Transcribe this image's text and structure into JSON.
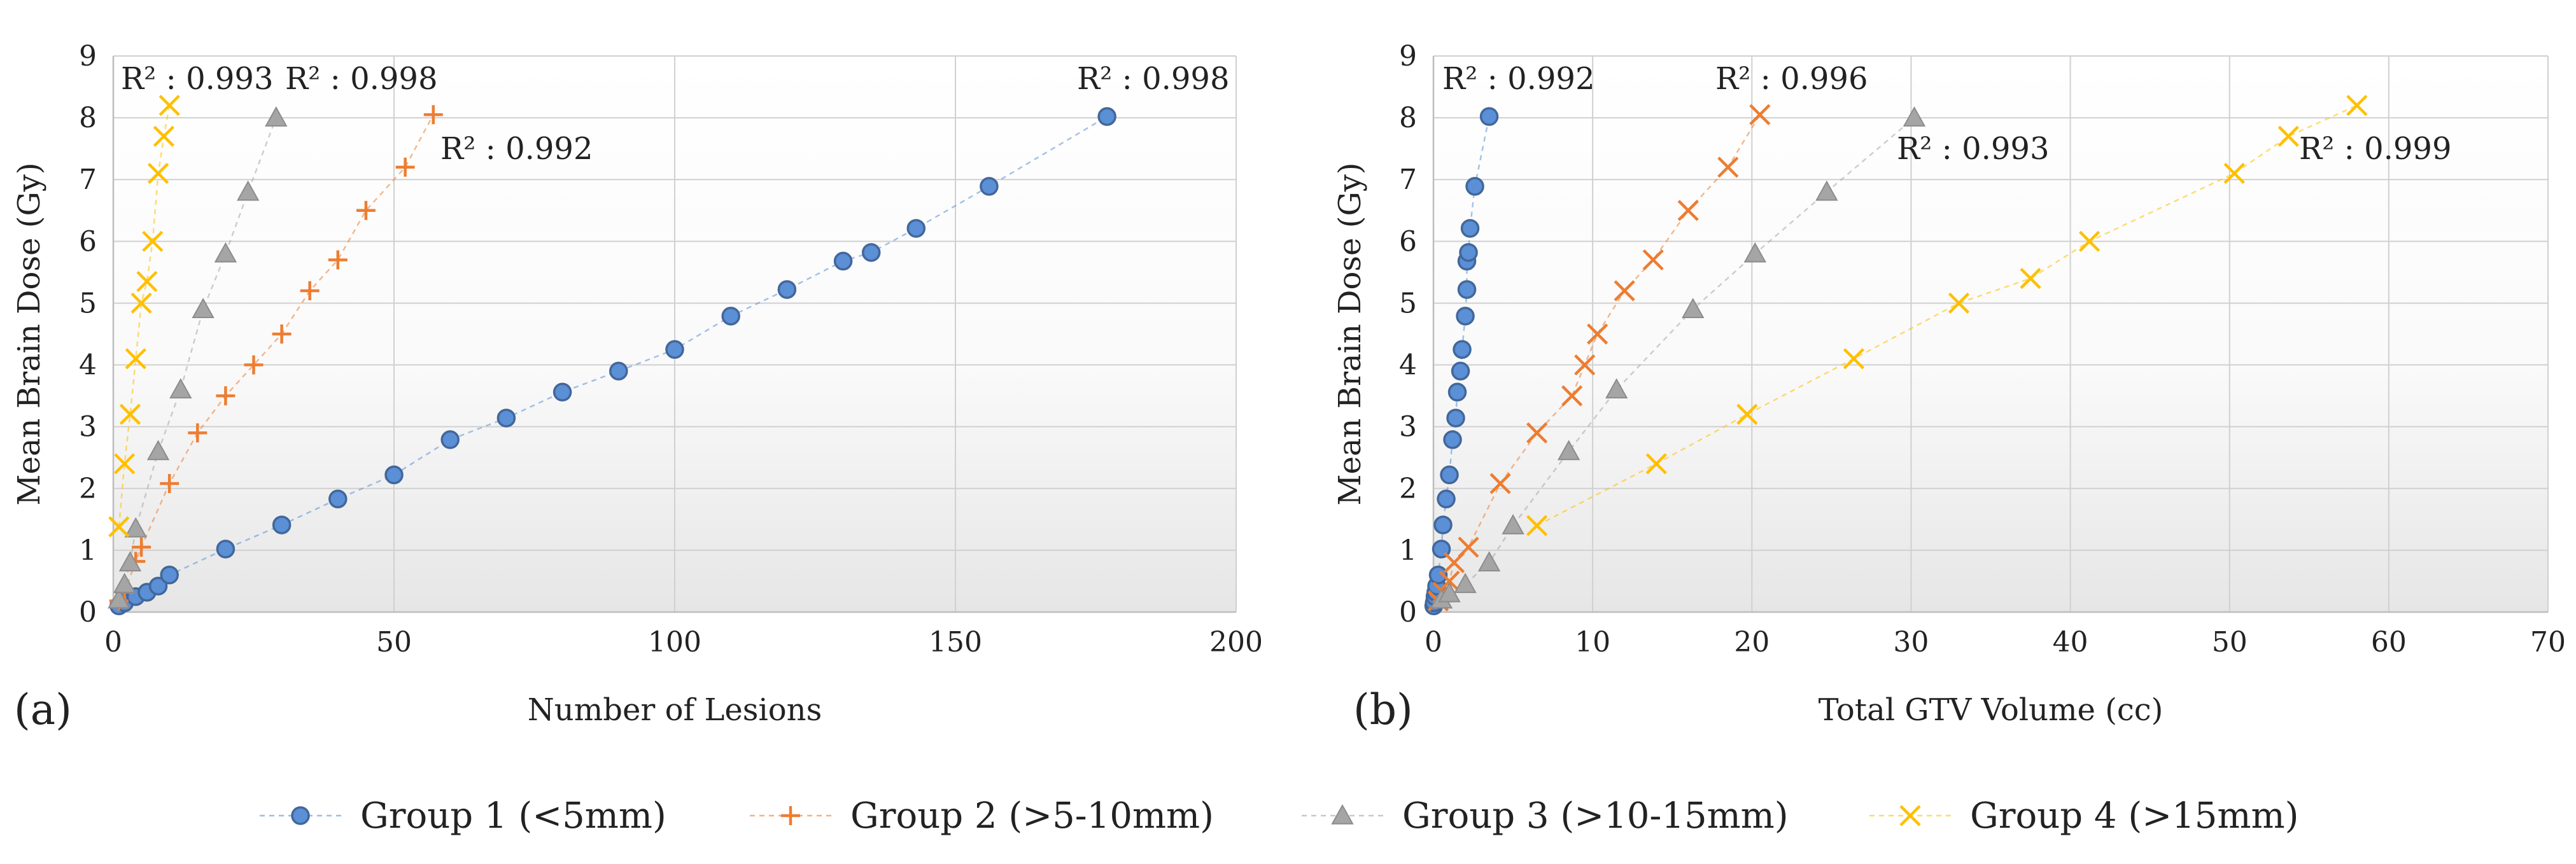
{
  "chart_data": [
    {
      "type": "scatter",
      "panel_label": "(a)",
      "xlabel": "Number of Lesions",
      "ylabel": "Mean Brain Dose (Gy)",
      "xlim": [
        0,
        200
      ],
      "ylim": [
        0,
        9
      ],
      "xticks": [
        "0",
        "50",
        "100",
        "150",
        "200"
      ],
      "yticks": [
        "0",
        "1",
        "2",
        "3",
        "4",
        "5",
        "6",
        "7",
        "8",
        "9"
      ],
      "grid": true,
      "series": [
        {
          "name": "Group 1 (<5mm)",
          "marker": "circle",
          "color": "#5b8fd6",
          "x": [
            1,
            2,
            4,
            6,
            8,
            10,
            20,
            30,
            40,
            50,
            60,
            70,
            80,
            90,
            100,
            110,
            120,
            130,
            135,
            143,
            156,
            177
          ],
          "y": [
            0.1,
            0.15,
            0.25,
            0.32,
            0.42,
            0.6,
            1.02,
            1.41,
            1.83,
            2.22,
            2.79,
            3.14,
            3.56,
            3.9,
            4.25,
            4.79,
            5.22,
            5.68,
            5.82,
            6.21,
            6.89,
            8.02
          ]
        },
        {
          "name": "Group 2 (>5-10mm)",
          "marker": "plus",
          "color": "#ed7d31",
          "x": [
            1,
            2,
            4,
            5,
            10,
            15,
            20,
            25,
            30,
            35,
            40,
            45,
            52,
            57
          ],
          "y": [
            0.18,
            0.32,
            0.82,
            1.05,
            2.08,
            2.9,
            3.5,
            4.0,
            4.5,
            5.2,
            5.7,
            6.5,
            7.2,
            8.05
          ]
        },
        {
          "name": "Group 3 (>10-15mm)",
          "marker": "triangle",
          "color": "#a5a5a5",
          "x": [
            1,
            2,
            3,
            4,
            8,
            12,
            16,
            20,
            24,
            29
          ],
          "y": [
            0.2,
            0.45,
            0.8,
            1.35,
            2.6,
            3.6,
            4.9,
            5.8,
            6.8,
            8.0
          ]
        },
        {
          "name": "Group 4 (>15mm)",
          "marker": "x",
          "color": "#ffc000",
          "x": [
            1,
            2,
            3,
            4,
            5,
            6,
            7,
            8,
            9,
            10
          ],
          "y": [
            1.38,
            2.4,
            3.2,
            4.1,
            5.0,
            5.35,
            6.0,
            7.1,
            7.7,
            8.2
          ]
        }
      ],
      "annotations": [
        "R² : 0.993",
        "R² : 0.998",
        "R² : 0.992",
        "R² : 0.998"
      ]
    },
    {
      "type": "scatter",
      "panel_label": "(b)",
      "xlabel": "Total GTV Volume (cc)",
      "ylabel": "Mean Brain Dose (Gy)",
      "xlim": [
        0,
        70
      ],
      "ylim": [
        0,
        9
      ],
      "xticks": [
        "0",
        "10",
        "20",
        "30",
        "40",
        "50",
        "60",
        "70"
      ],
      "yticks": [
        "0",
        "1",
        "2",
        "3",
        "4",
        "5",
        "6",
        "7",
        "8",
        "9"
      ],
      "grid": true,
      "series": [
        {
          "name": "Group 1 (<5mm)",
          "marker": "circle",
          "color": "#5b8fd6",
          "x": [
            0.02,
            0.05,
            0.1,
            0.15,
            0.2,
            0.3,
            0.5,
            0.6,
            0.8,
            1.0,
            1.2,
            1.4,
            1.5,
            1.7,
            1.8,
            2.0,
            2.1,
            2.1,
            2.2,
            2.3,
            2.6,
            3.5
          ],
          "y": [
            0.1,
            0.15,
            0.25,
            0.32,
            0.42,
            0.6,
            1.02,
            1.41,
            1.83,
            2.22,
            2.79,
            3.14,
            3.56,
            3.9,
            4.25,
            4.79,
            5.22,
            5.68,
            5.82,
            6.21,
            6.89,
            8.02
          ]
        },
        {
          "name": "Group 2 (>5-10mm)",
          "marker": "x",
          "color": "#ed7d31",
          "x": [
            0.3,
            0.6,
            1.0,
            1.3,
            2.2,
            4.2,
            6.5,
            8.7,
            9.5,
            10.3,
            12.0,
            13.8,
            16.0,
            18.5,
            20.5
          ],
          "y": [
            0.18,
            0.32,
            0.5,
            0.8,
            1.05,
            2.08,
            2.9,
            3.5,
            4.0,
            4.5,
            5.2,
            5.7,
            6.5,
            7.2,
            8.05
          ]
        },
        {
          "name": "Group 3 (>10-15mm)",
          "marker": "triangle",
          "color": "#a5a5a5",
          "x": [
            0.5,
            1.0,
            2.0,
            3.5,
            5.0,
            8.5,
            11.5,
            16.3,
            20.2,
            24.7,
            30.2
          ],
          "y": [
            0.2,
            0.3,
            0.45,
            0.8,
            1.4,
            2.6,
            3.6,
            4.9,
            5.8,
            6.8,
            8.0
          ]
        },
        {
          "name": "Group 4 (>15mm)",
          "marker": "x",
          "color": "#ffc000",
          "x": [
            6.5,
            14.0,
            19.7,
            26.4,
            33.0,
            37.5,
            41.2,
            50.3,
            53.7,
            58.0
          ],
          "y": [
            1.4,
            2.4,
            3.2,
            4.1,
            5.0,
            5.4,
            6.0,
            7.1,
            7.7,
            8.2
          ]
        }
      ],
      "annotations": [
        "R² : 0.992",
        "R² : 0.996",
        "R² : 0.993",
        "R² : 0.999"
      ]
    }
  ],
  "legend": [
    {
      "label": "Group 1 (<5mm)",
      "marker": "circle",
      "color": "#5b8fd6"
    },
    {
      "label": "Group 2 (>5-10mm)",
      "marker": "plus",
      "color": "#ed7d31"
    },
    {
      "label": "Group 3 (>10-15mm)",
      "marker": "triangle",
      "color": "#a5a5a5"
    },
    {
      "label": "Group 4 (>15mm)",
      "marker": "x",
      "color": "#ffc000"
    }
  ]
}
